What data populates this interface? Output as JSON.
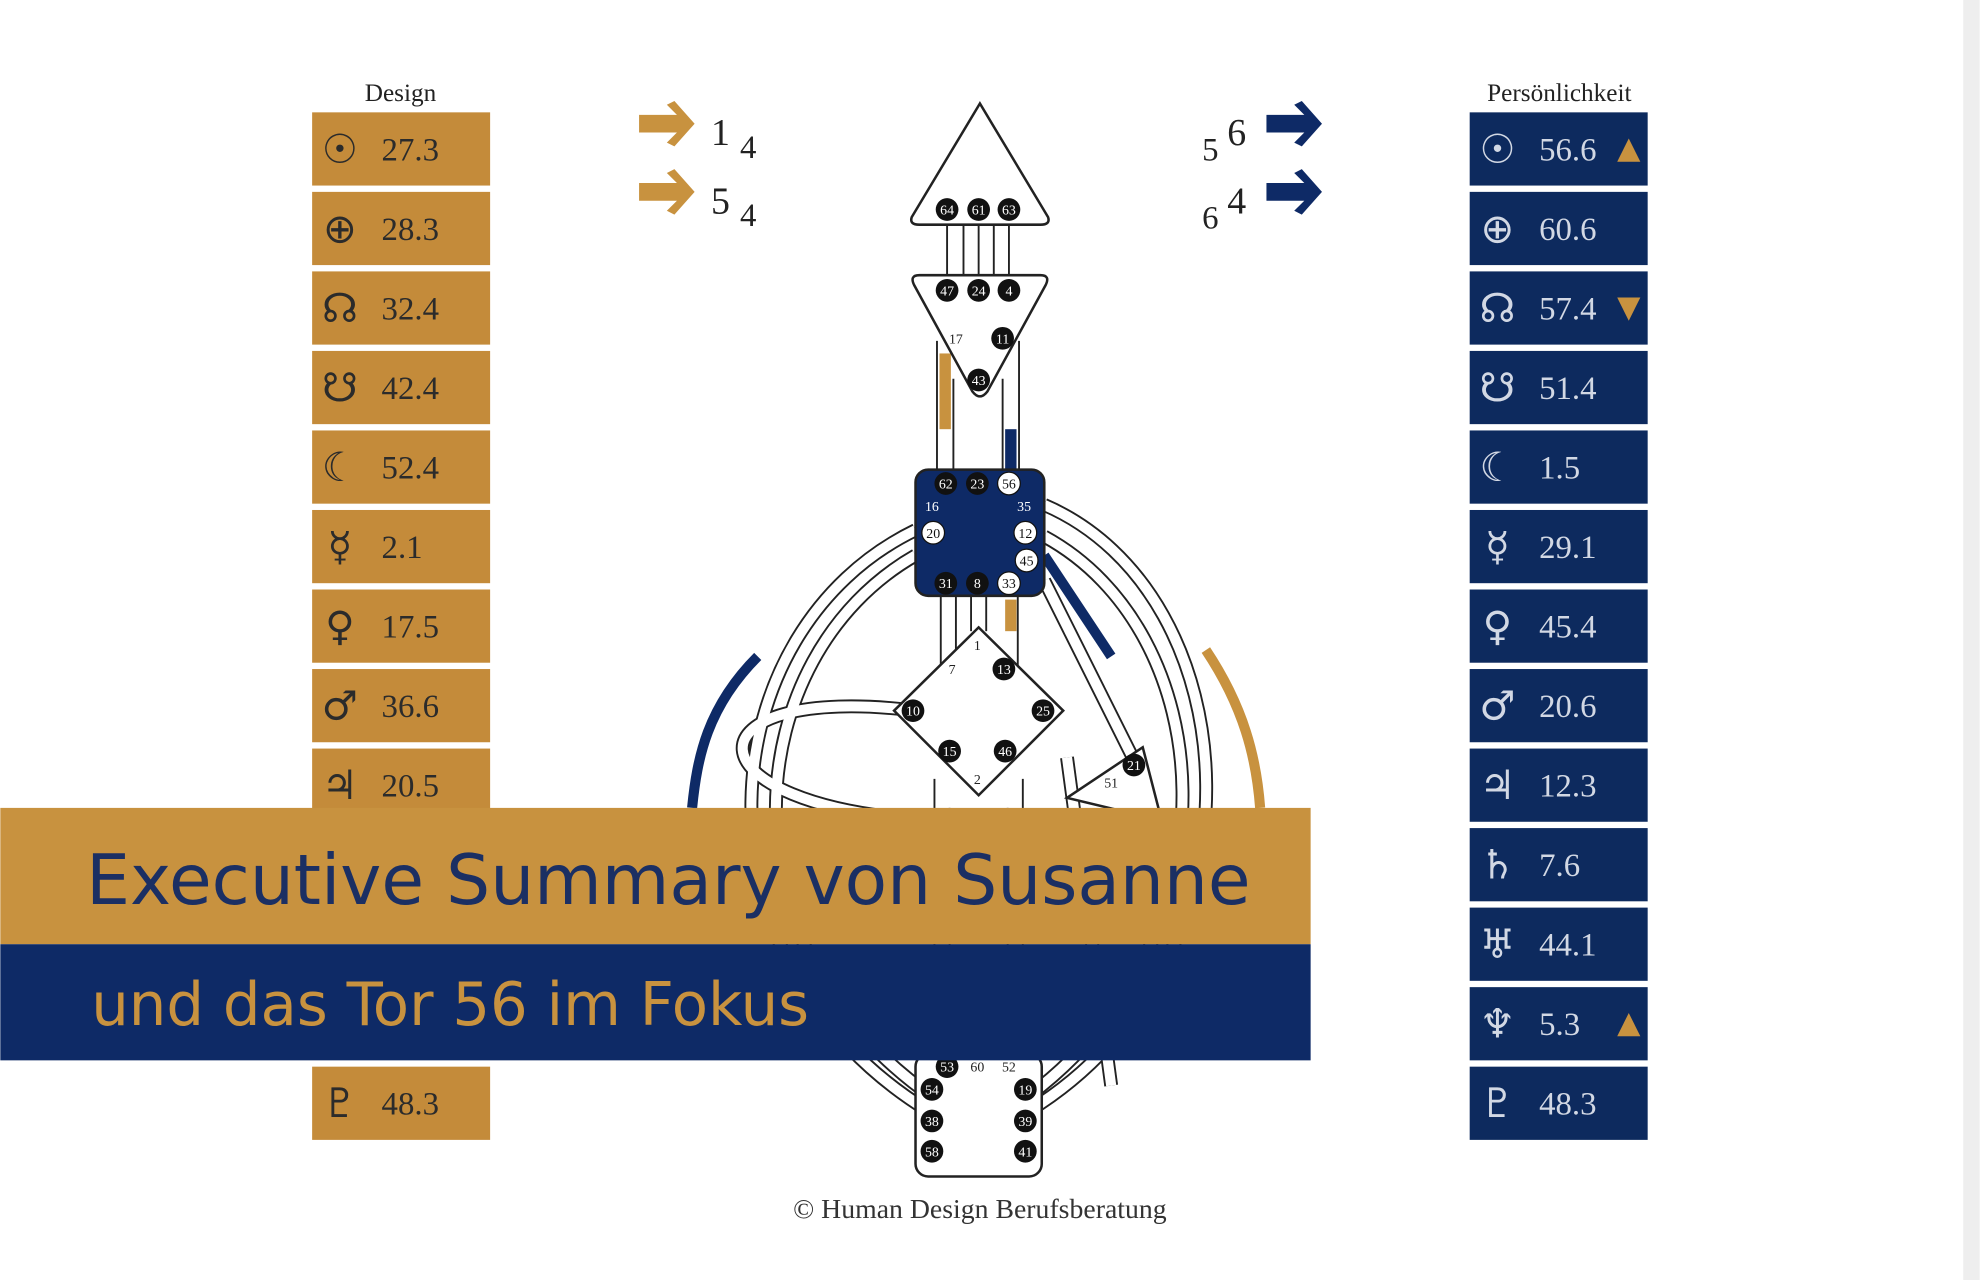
{
  "design": {
    "header": "Design",
    "rows": [
      {
        "symbol": "☉",
        "value": 27.3
      },
      {
        "symbol": "⊕",
        "value": 28.3
      },
      {
        "symbol": "☊",
        "value": 32.4
      },
      {
        "symbol": "☋",
        "value": 42.4
      },
      {
        "symbol": "☾",
        "value": 52.4
      },
      {
        "symbol": "☿",
        "value": 2.1
      },
      {
        "symbol": "♀",
        "value": 17.5
      },
      {
        "symbol": "♂",
        "value": 36.6
      },
      {
        "symbol": "♃",
        "value": 20.5
      },
      {
        "symbol": "♇",
        "value": 48.3
      }
    ]
  },
  "personality": {
    "header": "Persönlichkeit",
    "rows": [
      {
        "symbol": "☉",
        "value": 56.6,
        "mark": "▲"
      },
      {
        "symbol": "⊕",
        "value": 60.6
      },
      {
        "symbol": "☊",
        "value": 57.4,
        "mark": "▼"
      },
      {
        "symbol": "☋",
        "value": 51.4
      },
      {
        "symbol": "☾",
        "value": 1.5
      },
      {
        "symbol": "☿",
        "value": 29.1
      },
      {
        "symbol": "♀",
        "value": 45.4
      },
      {
        "symbol": "♂",
        "value": 20.6
      },
      {
        "symbol": "♃",
        "value": 12.3
      },
      {
        "symbol": "♄",
        "value": 7.6
      },
      {
        "symbol": "♅",
        "value": 44.1
      },
      {
        "symbol": "♆",
        "value": 5.3,
        "mark": "▲"
      },
      {
        "symbol": "♇",
        "value": 48.3
      }
    ]
  },
  "arrows": {
    "left": [
      {
        "big": 1,
        "small": 4
      },
      {
        "big": 5,
        "small": 4
      }
    ],
    "right": [
      {
        "small": 5,
        "big": 6
      },
      {
        "small": 6,
        "big": 4
      }
    ]
  },
  "gates": [
    {
      "label": 64,
      "style": "filled"
    },
    {
      "label": 61,
      "style": "filled"
    },
    {
      "label": 63,
      "style": "filled"
    },
    {
      "label": 47,
      "style": "filled"
    },
    {
      "label": 24,
      "style": "filled"
    },
    {
      "label": 4,
      "style": "filled"
    },
    {
      "label": 17,
      "style": "plain"
    },
    {
      "label": 11,
      "style": "filled"
    },
    {
      "label": 43,
      "style": "filled"
    },
    {
      "label": 62,
      "style": "filled"
    },
    {
      "label": 23,
      "style": "filled"
    },
    {
      "label": 56,
      "style": "white"
    },
    {
      "label": 16,
      "style": "plain"
    },
    {
      "label": 35,
      "style": "plain"
    },
    {
      "label": 20,
      "style": "white"
    },
    {
      "label": 12,
      "style": "white"
    },
    {
      "label": 45,
      "style": "white"
    },
    {
      "label": 31,
      "style": "filled"
    },
    {
      "label": 8,
      "style": "filled"
    },
    {
      "label": 33,
      "style": "white"
    },
    {
      "label": 1,
      "style": "plain"
    },
    {
      "label": 7,
      "style": "plain"
    },
    {
      "label": 13,
      "style": "filled"
    },
    {
      "label": 10,
      "style": "filled"
    },
    {
      "label": 25,
      "style": "filled"
    },
    {
      "label": 15,
      "style": "filled"
    },
    {
      "label": 46,
      "style": "filled"
    },
    {
      "label": 2,
      "style": "plain"
    },
    {
      "label": 21,
      "style": "filled"
    },
    {
      "label": 51,
      "style": "plain"
    },
    {
      "label": 53,
      "style": "filled"
    },
    {
      "label": 60,
      "style": "plain"
    },
    {
      "label": 52,
      "style": "plain"
    },
    {
      "label": 54,
      "style": "filled"
    },
    {
      "label": 19,
      "style": "filled"
    },
    {
      "label": 38,
      "style": "filled"
    },
    {
      "label": 39,
      "style": "filled"
    },
    {
      "label": 58,
      "style": "filled"
    },
    {
      "label": 41,
      "style": "filled"
    }
  ],
  "copyright": "© Human Design Berufsberatung",
  "banner": {
    "title": "Executive Summary von Susanne",
    "subtitle": "und das Tor 56 im Fokus"
  }
}
